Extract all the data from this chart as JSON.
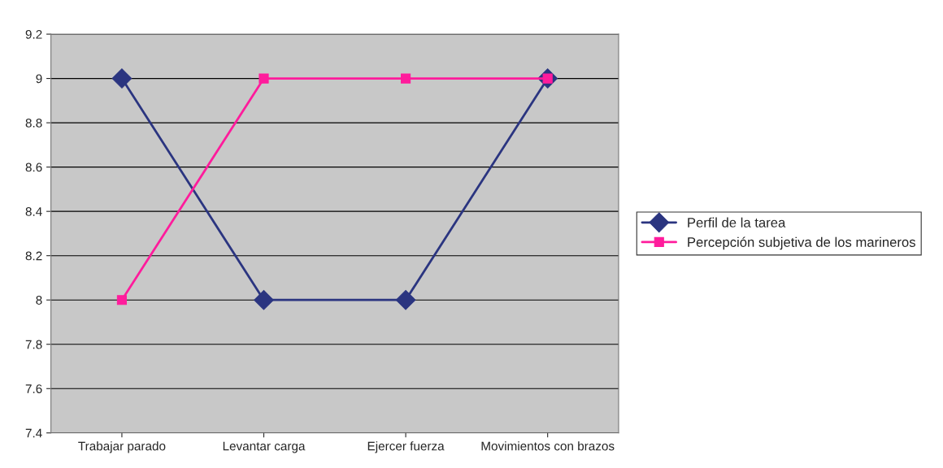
{
  "chart_data": {
    "type": "line",
    "categories": [
      "Trabajar parado",
      "Levantar carga",
      "Ejercer fuerza",
      "Movimientos con brazos"
    ],
    "series": [
      {
        "name": "Perfil de la tarea",
        "color": "#2b3580",
        "values": [
          9,
          8,
          8,
          9
        ],
        "marker": "diamond"
      },
      {
        "name": "Percepción subjetiva de los marineros",
        "color": "#ff1c9c",
        "values": [
          8,
          9,
          9,
          9
        ],
        "marker": "square"
      }
    ],
    "ylim": [
      7.4,
      9.2
    ],
    "yticks": [
      7.4,
      7.6,
      7.8,
      8,
      8.2,
      8.4,
      8.6,
      8.8,
      9,
      9.2
    ],
    "grid": "y",
    "legend": "right",
    "line_style": "solid"
  }
}
